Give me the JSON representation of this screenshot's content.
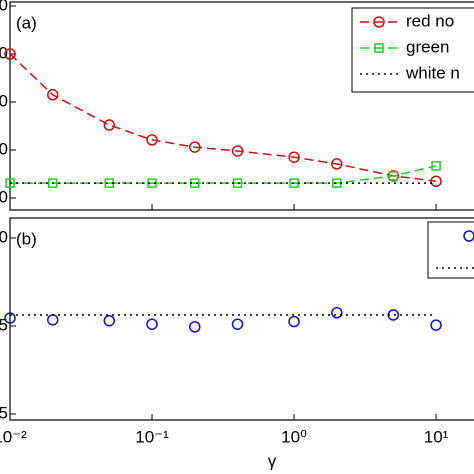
{
  "chart_data": [
    {
      "type": "line",
      "panel_label": "(a)",
      "log_x": true,
      "x": [
        0.01,
        0.02,
        0.05,
        0.1,
        0.2,
        0.4,
        1,
        2,
        5,
        10
      ],
      "series": [
        {
          "name": "red no",
          "color": "#cc1111",
          "style": "dashed",
          "marker": "circle",
          "values": [
            3,
            2.15,
            1.52,
            1.21,
            1.06,
            0.98,
            0.85,
            0.71,
            0.46,
            0.35
          ]
        },
        {
          "name": "green",
          "color": "#22cc22",
          "style": "dashed",
          "marker": "square",
          "values": [
            0.31,
            0.31,
            0.31,
            0.31,
            0.31,
            0.31,
            0.31,
            0.31,
            0.46,
            0.67
          ]
        },
        {
          "name": "white n",
          "color": "#000000",
          "style": "dotted",
          "marker": "none",
          "values": [
            0.31,
            0.31,
            0.31,
            0.31,
            0.31,
            0.31,
            0.31,
            0.31,
            0.31,
            0.31
          ]
        }
      ],
      "xlim": [
        0.01,
        18.5
      ],
      "ylim": [
        -0.25,
        4
      ],
      "yticks": [
        {
          "value": 0,
          "label": "0"
        },
        {
          "value": 1,
          "label": "0"
        },
        {
          "value": 2,
          "label": "0"
        },
        {
          "value": 3,
          "label": "0"
        },
        {
          "value": 4,
          "label": "0"
        }
      ]
    },
    {
      "type": "scatter",
      "panel_label": "(b)",
      "log_x": true,
      "x_label": "γ",
      "x": [
        0.01,
        0.02,
        0.05,
        0.1,
        0.2,
        0.4,
        1,
        2,
        5,
        10
      ],
      "series": [
        {
          "name": "",
          "color": "#1111cc",
          "style": "none",
          "marker": "circle",
          "values": [
            1.09,
            1.07,
            1.06,
            1.02,
            0.99,
            1.02,
            1.05,
            1.15,
            1.125,
            1.01
          ]
        },
        {
          "name": "",
          "color": "#000000",
          "style": "dotted",
          "marker": "none",
          "values": [
            1.125,
            1.125,
            1.125,
            1.125,
            1.125,
            1.125,
            1.125,
            1.125,
            1.125,
            1.125
          ]
        }
      ],
      "xlim": [
        0.01,
        18.5
      ],
      "ylim": [
        -0.068,
        2.227
      ],
      "yticks": [
        {
          "value": 0,
          "label": "5"
        },
        {
          "value": 1,
          "label": "5"
        },
        {
          "value": 2,
          "label": "0"
        }
      ],
      "xticks": [
        {
          "value": 0.01,
          "label": "10⁻²"
        },
        {
          "value": 0.1,
          "label": "10⁻¹"
        },
        {
          "value": 1,
          "label": "10⁰"
        },
        {
          "value": 10,
          "label": "10¹"
        }
      ]
    }
  ]
}
